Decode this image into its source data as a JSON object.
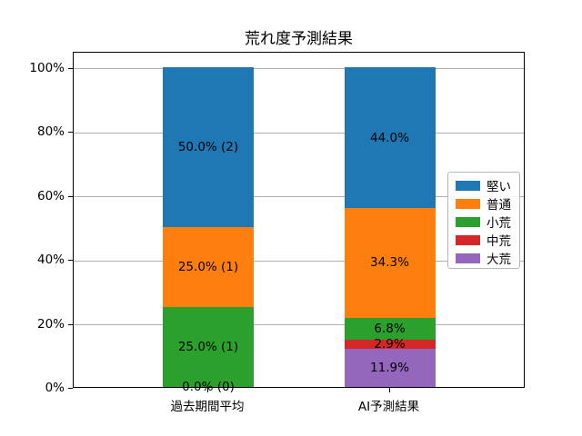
{
  "chart_data": {
    "type": "bar",
    "stacked": true,
    "title": "荒れ度予測結果",
    "categories": [
      "過去期間平均",
      "AI予測結果"
    ],
    "series": [
      {
        "name": "堅い",
        "color": "#1f77b4",
        "values": [
          50.0,
          44.0
        ],
        "labels": [
          "50.0% (2)",
          "44.0%"
        ]
      },
      {
        "name": "普通",
        "color": "#ff7f0e",
        "values": [
          25.0,
          34.3
        ],
        "labels": [
          "25.0% (1)",
          "34.3%"
        ]
      },
      {
        "name": "小荒",
        "color": "#2ca02c",
        "values": [
          25.0,
          6.8
        ],
        "labels": [
          "25.0% (1)",
          "6.8%"
        ]
      },
      {
        "name": "中荒",
        "color": "#d62728",
        "values": [
          0.0,
          2.9
        ],
        "labels": [
          "0.0% (0)",
          "2.9%"
        ]
      },
      {
        "name": "大荒",
        "color": "#9467bd",
        "values": [
          0.0,
          11.9
        ],
        "labels": [
          "",
          "11.9%"
        ]
      }
    ],
    "yticks": [
      "0%",
      "20%",
      "40%",
      "60%",
      "80%",
      "100%"
    ],
    "ylim": [
      0,
      105
    ],
    "grid": true,
    "legend_position": "right",
    "style": {
      "grid_color": "#b0b0b0",
      "spine_color": "#000000",
      "background": "#ffffff",
      "legend_border": "#b7b7b7",
      "text_color": "#000000"
    }
  }
}
